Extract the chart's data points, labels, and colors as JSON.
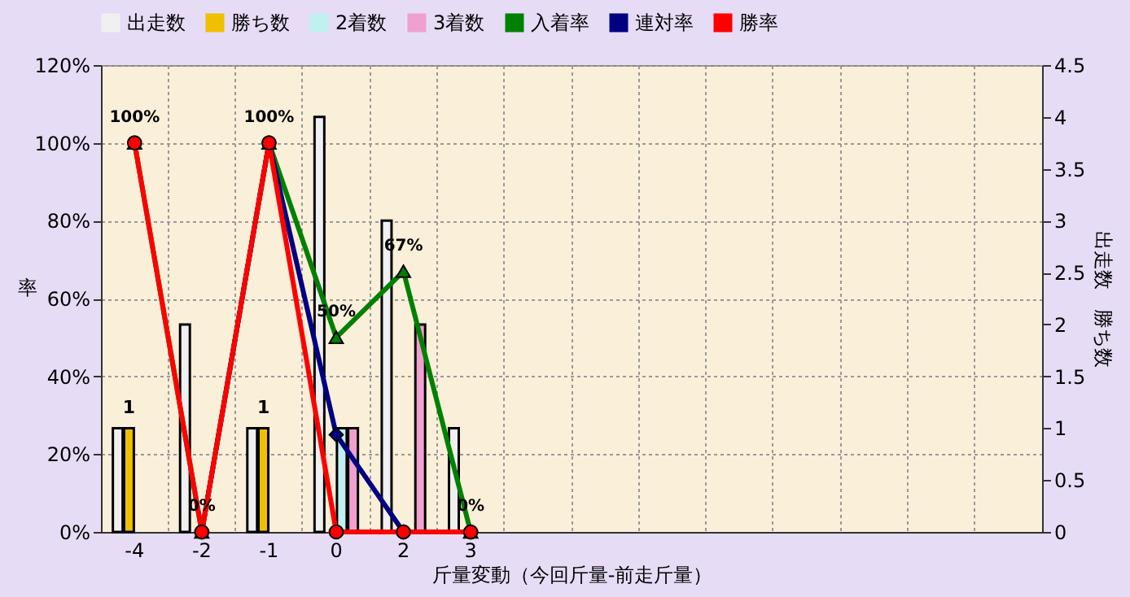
{
  "chart_data": {
    "type": "bar",
    "xlabel": "斤量変動（今回斤量-前走斤量）",
    "ylabel": "率",
    "y2label": "出走数　勝ち数",
    "categories": [
      "-4",
      "-2",
      "-1",
      "0",
      "2",
      "3",
      null,
      null,
      null,
      null,
      null,
      null,
      null,
      null
    ],
    "series": [
      {
        "name": "出走数",
        "axis": "y2",
        "color": "#f0f0f0",
        "values": [
          1,
          2,
          1,
          4,
          3,
          1,
          null,
          null,
          null,
          null,
          null,
          null,
          null,
          null
        ]
      },
      {
        "name": "勝ち数",
        "axis": "y2",
        "color": "#f0c000",
        "values": [
          1,
          0,
          1,
          0,
          0,
          0,
          null,
          null,
          null,
          null,
          null,
          null,
          null,
          null
        ],
        "value_labels": [
          "1",
          null,
          "1",
          null,
          null,
          null,
          null,
          null,
          null,
          null,
          null,
          null,
          null,
          null
        ]
      },
      {
        "name": "2着数",
        "axis": "y2",
        "color": "#c0f0f0",
        "values": [
          0,
          0,
          0,
          1,
          0,
          0,
          null,
          null,
          null,
          null,
          null,
          null,
          null,
          null
        ]
      },
      {
        "name": "3着数",
        "axis": "y2",
        "color": "#f0a0d0",
        "values": [
          0,
          0,
          0,
          1,
          2,
          0,
          null,
          null,
          null,
          null,
          null,
          null,
          null,
          null
        ]
      },
      {
        "name": "入着率",
        "type": "line",
        "marker": "triangle",
        "color": "#008000",
        "values": [
          100,
          0,
          100,
          50,
          67,
          0,
          null,
          null,
          null,
          null,
          null,
          null,
          null,
          null
        ],
        "value_labels": [
          "100%",
          "0%",
          "100%",
          "50%",
          "67%",
          "0%",
          null,
          null,
          null,
          null,
          null,
          null,
          null,
          null
        ]
      },
      {
        "name": "連対率",
        "type": "line",
        "marker": "diamond",
        "color": "#000080",
        "values": [
          null,
          0,
          100,
          25,
          0,
          0,
          null,
          null,
          null,
          null,
          null,
          null,
          null,
          null
        ]
      },
      {
        "name": "勝率",
        "type": "line",
        "marker": "circle",
        "color": "#ff0000",
        "values": [
          100,
          0,
          100,
          0,
          0,
          0,
          null,
          null,
          null,
          null,
          null,
          null,
          null,
          null
        ]
      }
    ],
    "ylim": [
      0,
      120
    ],
    "yticks": [
      {
        "value": 0,
        "label": "0%"
      },
      {
        "value": 20,
        "label": "20%"
      },
      {
        "value": 40,
        "label": "40%"
      },
      {
        "value": 60,
        "label": "60%"
      },
      {
        "value": 80,
        "label": "80%"
      },
      {
        "value": 100,
        "label": "100%"
      },
      {
        "value": 120,
        "label": "120%"
      }
    ],
    "y2lim": [
      0,
      4.5
    ],
    "y2ticks": [
      0,
      0.5,
      1,
      1.5,
      2,
      2.5,
      3,
      3.5,
      4,
      4.5
    ],
    "grid": true,
    "legend": "top",
    "line_style": "solid"
  }
}
